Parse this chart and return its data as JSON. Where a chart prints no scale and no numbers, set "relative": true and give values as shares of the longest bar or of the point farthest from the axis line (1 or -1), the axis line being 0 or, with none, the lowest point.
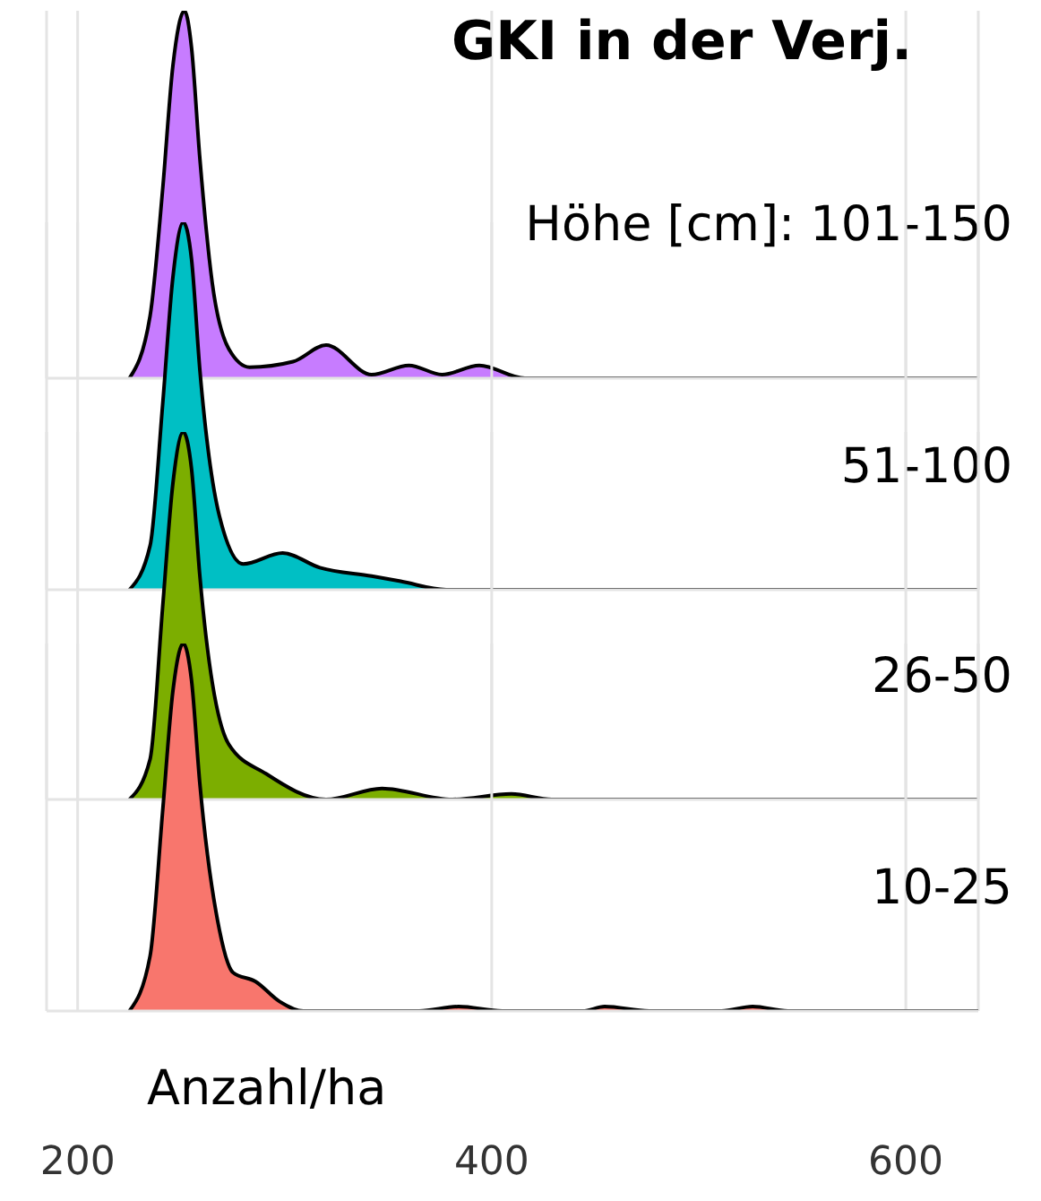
{
  "chart_data": [
    {
      "type": "area",
      "title": "GKI in der Verj.",
      "subtitle": "Höhe [cm]: 101-150",
      "relative": true,
      "xlim": [
        185,
        635
      ],
      "xticks": [
        200,
        400,
        600
      ],
      "grid": "x",
      "tick_labels": false,
      "series": [
        {
          "color": "#c77cff",
          "x": [
            225,
            235,
            241,
            246,
            251.6,
            255,
            259,
            265,
            273,
            283,
            304,
            320,
            342,
            360,
            376,
            394,
            416,
            635
          ],
          "values": [
            0,
            0.17,
            0.51,
            0.85,
            1,
            0.9,
            0.6,
            0.26,
            0.08,
            0.03,
            0.045,
            0.09,
            0.01,
            0.035,
            0.01,
            0.035,
            0,
            0
          ]
        }
      ]
    },
    {
      "type": "area",
      "title": "51-100",
      "relative": true,
      "xlim": [
        185,
        635
      ],
      "xticks": [
        200,
        400,
        600
      ],
      "grid": "x",
      "tick_labels": false,
      "series": [
        {
          "color": "#00bfc4",
          "x": [
            225,
            235,
            241,
            246,
            251,
            255,
            259,
            268.5,
            280,
            299,
            317,
            342,
            356,
            378,
            635
          ],
          "values": [
            0,
            0.12,
            0.5,
            0.85,
            1,
            0.9,
            0.6,
            0.2,
            0.07,
            0.1,
            0.06,
            0.037,
            0.023,
            0,
            0
          ]
        }
      ]
    },
    {
      "type": "area",
      "title": "26-50",
      "relative": true,
      "xlim": [
        185,
        635
      ],
      "xticks": [
        200,
        400,
        600
      ],
      "grid": "x",
      "tick_labels": false,
      "series": [
        {
          "color": "#7cae00",
          "x": [
            225,
            235,
            241,
            246,
            251,
            255,
            259,
            273,
            291,
            320,
            347,
            381,
            409.5,
            429,
            635
          ],
          "values": [
            0,
            0.11,
            0.52,
            0.86,
            1,
            0.9,
            0.61,
            0.15,
            0.07,
            0,
            0.03,
            0,
            0.015,
            0,
            0
          ]
        }
      ]
    },
    {
      "type": "area",
      "title": "10-25",
      "xlabel": "Anzahl/ha",
      "relative": true,
      "xlim": [
        185,
        635
      ],
      "xticks": [
        200,
        400,
        600
      ],
      "grid": "x",
      "tick_labels": "x",
      "series": [
        {
          "color": "#f8766d",
          "x": [
            225,
            235,
            241,
            246,
            251,
            255,
            259,
            268.5,
            275,
            286,
            297.5,
            309,
            365,
            384,
            405,
            444,
            454.5,
            476,
            511,
            526,
            543,
            635
          ],
          "values": [
            0,
            0.15,
            0.54,
            0.87,
            1,
            0.9,
            0.62,
            0.22,
            0.105,
            0.08,
            0.026,
            0,
            0,
            0.012,
            0,
            0,
            0.012,
            0,
            0,
            0.012,
            0,
            0
          ]
        }
      ]
    }
  ]
}
